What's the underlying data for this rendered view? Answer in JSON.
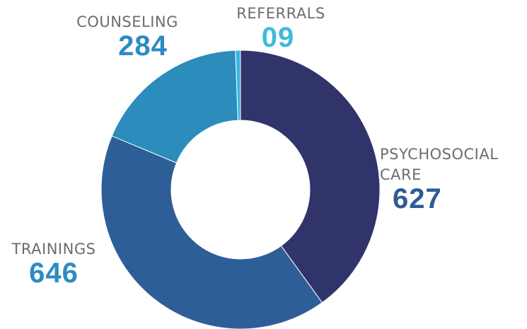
{
  "chart_data": {
    "type": "donut",
    "categories": [
      "PSYCHOSOCIAL CARE",
      "TRAININGS",
      "COUNSELING",
      "REFERRALS"
    ],
    "values": [
      627,
      646,
      284,
      9
    ],
    "value_labels": [
      "627",
      "646",
      "284",
      "09"
    ],
    "colors": [
      "#31346b",
      "#2e5e98",
      "#2c8cbc",
      "#3bb5d9"
    ],
    "label_colors": [
      "#2e5a96",
      "#2c8bc1",
      "#2c8bc1",
      "#42b9da"
    ]
  }
}
